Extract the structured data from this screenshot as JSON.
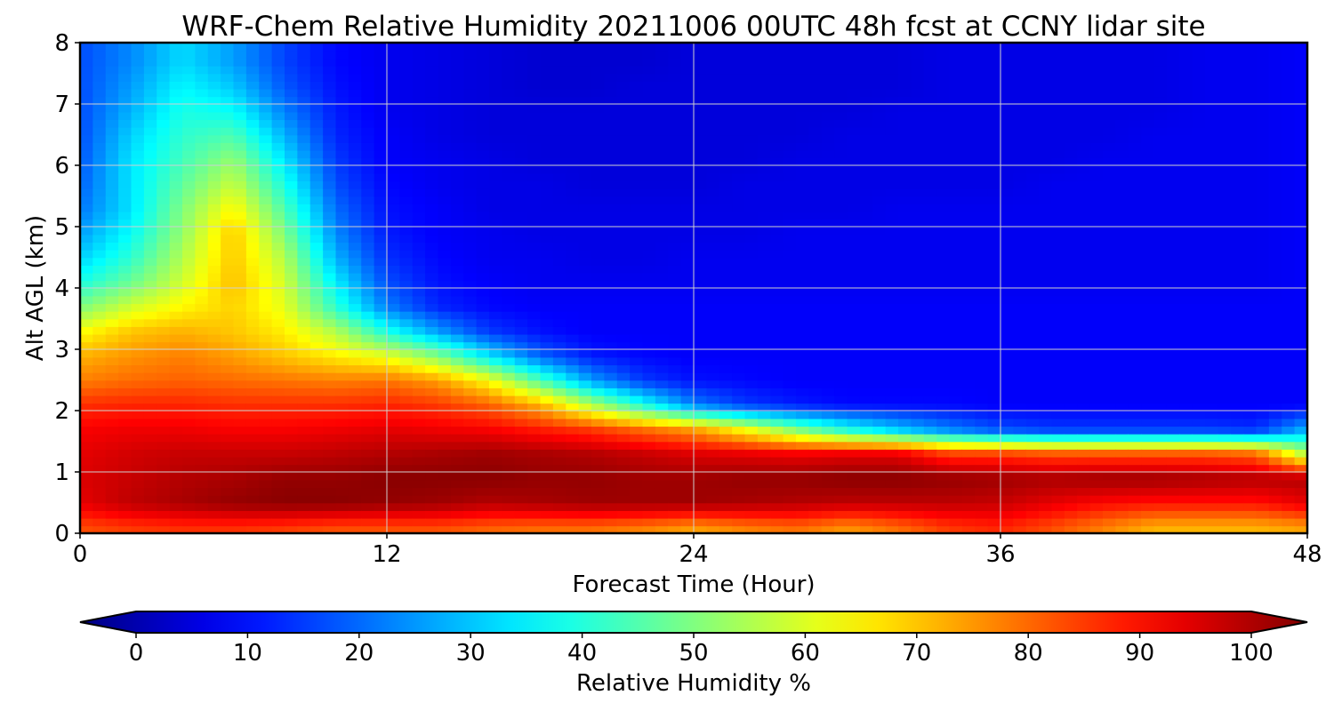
{
  "chart_data": {
    "type": "heatmap",
    "title": "WRF-Chem Relative Humidity 20211006 00UTC 48h fcst at CCNY lidar site",
    "xlabel": "Forecast Time (Hour)",
    "ylabel": "Alt AGL (km)",
    "xlim": [
      0,
      48
    ],
    "ylim": [
      0,
      8
    ],
    "xticks": [
      "0",
      "12",
      "24",
      "36",
      "48"
    ],
    "yticks": [
      "0",
      "1",
      "2",
      "3",
      "4",
      "5",
      "6",
      "7",
      "8"
    ],
    "grid": true,
    "colormap": "jet",
    "colorbar": {
      "label": "Relative Humidity %",
      "range": [
        0,
        100
      ],
      "ticks": [
        "0",
        "10",
        "20",
        "30",
        "40",
        "50",
        "60",
        "70",
        "80",
        "90",
        "100"
      ],
      "extend": "both",
      "orientation": "horizontal",
      "placement": "bottom"
    },
    "x": [
      0,
      2,
      4,
      6,
      8,
      10,
      12,
      14,
      16,
      18,
      20,
      22,
      24,
      26,
      28,
      30,
      32,
      34,
      36,
      38,
      40,
      42,
      44,
      46,
      48
    ],
    "y": [
      0.1,
      0.5,
      0.9,
      1.3,
      1.7,
      2.1,
      2.5,
      2.9,
      3.3,
      3.7,
      4.1,
      4.5,
      4.9,
      5.3,
      5.7,
      6.1,
      6.5,
      6.9,
      7.3,
      7.7
    ],
    "z": [
      [
        80,
        82,
        83,
        83,
        82,
        80,
        80,
        80,
        78,
        77,
        77,
        75,
        72,
        75,
        77,
        73,
        77,
        82,
        84,
        80,
        75,
        70,
        70,
        70,
        72
      ],
      [
        90,
        94,
        96,
        98,
        99,
        99,
        98,
        97,
        95,
        96,
        97,
        97,
        97,
        96,
        95,
        94,
        94,
        94,
        93,
        90,
        87,
        86,
        86,
        86,
        90
      ],
      [
        91,
        93,
        95,
        96,
        98,
        98,
        99,
        99,
        99,
        98,
        98,
        97,
        97,
        98,
        98,
        99,
        99,
        98,
        97,
        96,
        97,
        97,
        96,
        95,
        95
      ],
      [
        90,
        92,
        93,
        93,
        93,
        94,
        95,
        96,
        97,
        96,
        95,
        93,
        91,
        90,
        89,
        90,
        90,
        82,
        82,
        80,
        80,
        80,
        80,
        78,
        55
      ],
      [
        88,
        89,
        89,
        88,
        88,
        89,
        90,
        89,
        88,
        85,
        82,
        77,
        72,
        62,
        50,
        40,
        32,
        25,
        20,
        18,
        18,
        18,
        18,
        17,
        30
      ],
      [
        83,
        84,
        84,
        83,
        83,
        83,
        84,
        82,
        78,
        70,
        55,
        40,
        25,
        18,
        15,
        13,
        13,
        13,
        12,
        12,
        12,
        12,
        12,
        12,
        12
      ],
      [
        75,
        77,
        78,
        77,
        76,
        75,
        76,
        72,
        62,
        45,
        28,
        18,
        14,
        13,
        12,
        12,
        12,
        12,
        12,
        12,
        12,
        12,
        12,
        12,
        12
      ],
      [
        70,
        73,
        75,
        72,
        68,
        64,
        60,
        50,
        35,
        22,
        15,
        13,
        12,
        12,
        12,
        12,
        12,
        12,
        12,
        12,
        12,
        12,
        12,
        12,
        12
      ],
      [
        62,
        68,
        70,
        68,
        64,
        55,
        40,
        28,
        18,
        14,
        12,
        12,
        12,
        12,
        12,
        12,
        12,
        12,
        12,
        12,
        12,
        12,
        12,
        12,
        12
      ],
      [
        50,
        58,
        63,
        67,
        60,
        42,
        25,
        16,
        13,
        12,
        12,
        12,
        12,
        12,
        12,
        12,
        12,
        12,
        12,
        12,
        12,
        12,
        12,
        12,
        12
      ],
      [
        40,
        48,
        58,
        69,
        58,
        36,
        20,
        14,
        12,
        11,
        11,
        11,
        11,
        11,
        11,
        11,
        11,
        11,
        11,
        11,
        11,
        11,
        11,
        11,
        12
      ],
      [
        33,
        42,
        55,
        68,
        55,
        30,
        17,
        13,
        11,
        11,
        10,
        10,
        11,
        11,
        11,
        11,
        11,
        11,
        11,
        11,
        11,
        11,
        11,
        11,
        12
      ],
      [
        28,
        38,
        52,
        68,
        50,
        26,
        15,
        12,
        11,
        10,
        10,
        10,
        10,
        10,
        11,
        11,
        11,
        11,
        11,
        11,
        11,
        11,
        11,
        11,
        12
      ],
      [
        24,
        35,
        50,
        63,
        45,
        23,
        14,
        12,
        10,
        10,
        10,
        10,
        10,
        10,
        10,
        10,
        11,
        11,
        11,
        11,
        11,
        11,
        11,
        11,
        12
      ],
      [
        22,
        35,
        47,
        57,
        40,
        20,
        13,
        11,
        10,
        10,
        9,
        9,
        9,
        10,
        10,
        10,
        10,
        10,
        10,
        11,
        11,
        11,
        11,
        11,
        12
      ],
      [
        21,
        35,
        44,
        52,
        35,
        18,
        12,
        11,
        10,
        9,
        9,
        9,
        9,
        9,
        10,
        10,
        10,
        10,
        10,
        10,
        11,
        11,
        11,
        11,
        12
      ],
      [
        20,
        33,
        42,
        45,
        30,
        16,
        12,
        10,
        9,
        9,
        9,
        9,
        9,
        9,
        9,
        10,
        10,
        10,
        10,
        10,
        10,
        11,
        11,
        11,
        12
      ],
      [
        20,
        30,
        40,
        38,
        25,
        15,
        11,
        10,
        9,
        9,
        9,
        9,
        9,
        9,
        9,
        9,
        10,
        10,
        10,
        10,
        10,
        10,
        11,
        11,
        12
      ],
      [
        20,
        28,
        37,
        32,
        21,
        14,
        11,
        10,
        9,
        8,
        8,
        9,
        9,
        9,
        9,
        9,
        9,
        10,
        10,
        10,
        10,
        10,
        11,
        11,
        12
      ],
      [
        20,
        26,
        34,
        28,
        19,
        13,
        11,
        10,
        9,
        8,
        8,
        8,
        9,
        9,
        9,
        9,
        9,
        10,
        10,
        10,
        10,
        10,
        11,
        11,
        12
      ]
    ]
  }
}
